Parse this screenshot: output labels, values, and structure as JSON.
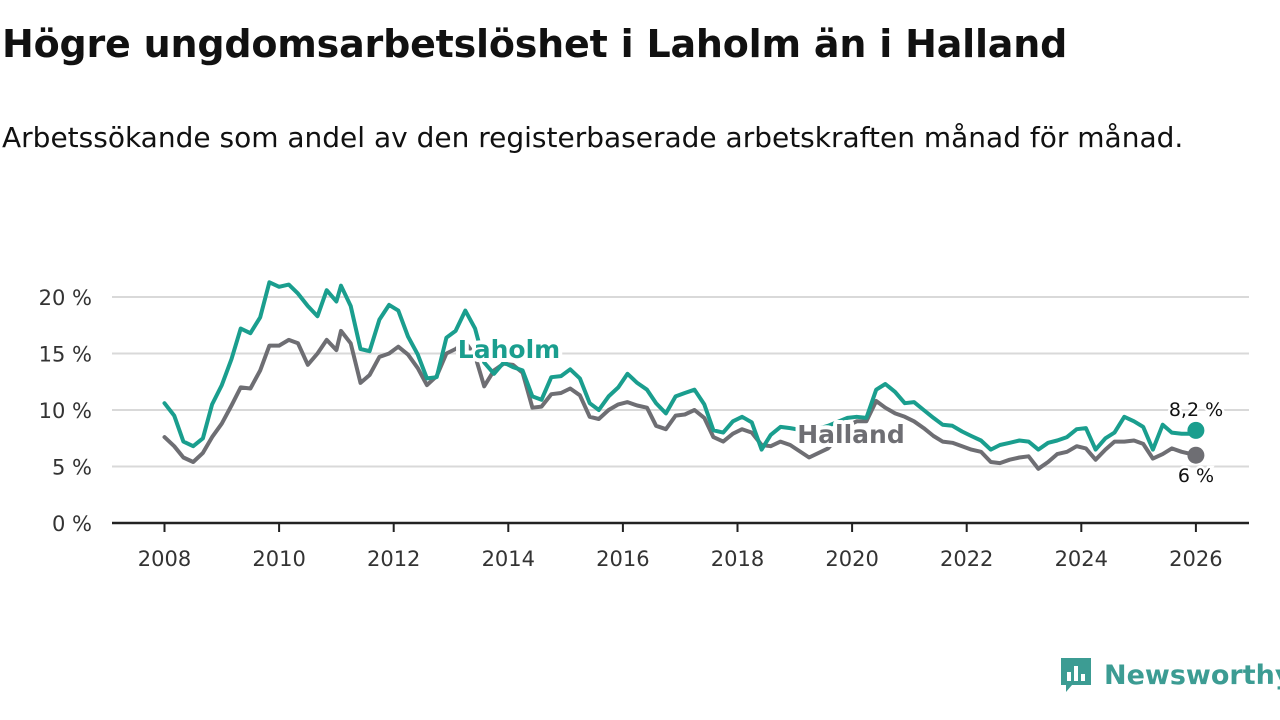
{
  "header": {
    "title": "Högre ungdomsarbetslöshet i Laholm än i Halland",
    "subtitle": "Arbetssökande som andel av den registerbaserade arbetskraften månad för månad."
  },
  "brand": {
    "name": "Newsworthy",
    "color": "#3c9c93"
  },
  "chart_data": {
    "type": "line",
    "title": "Högre ungdomsarbetslöshet i Laholm än i Halland",
    "subtitle": "Arbetssökande som andel av den registerbaserade arbetskraften månad för månad.",
    "xlabel": "",
    "ylabel": "",
    "xlim": [
      2007.5,
      2026.5
    ],
    "ylim": [
      0,
      20
    ],
    "x_ticks": [
      2008,
      2010,
      2012,
      2014,
      2016,
      2018,
      2020,
      2022,
      2024,
      2026
    ],
    "x_tick_labels": [
      "2008",
      "2010",
      "2012",
      "2014",
      "2016",
      "2018",
      "2020",
      "2022",
      "2024",
      "2026"
    ],
    "y_ticks": [
      0,
      5,
      10,
      15,
      20
    ],
    "y_tick_labels": [
      "0 %",
      "5 %",
      "10 %",
      "15 %",
      "20 %"
    ],
    "grid": true,
    "series": [
      {
        "name": "Laholm",
        "color": "#1a9e8e",
        "end_label": "8,2 %",
        "points": [
          [
            2008.0,
            10.6
          ],
          [
            2008.17,
            9.5
          ],
          [
            2008.33,
            7.2
          ],
          [
            2008.5,
            6.8
          ],
          [
            2008.67,
            7.5
          ],
          [
            2008.83,
            10.5
          ],
          [
            2009.0,
            12.2
          ],
          [
            2009.17,
            14.5
          ],
          [
            2009.33,
            17.2
          ],
          [
            2009.5,
            16.8
          ],
          [
            2009.67,
            18.2
          ],
          [
            2009.83,
            21.3
          ],
          [
            2010.0,
            20.9
          ],
          [
            2010.17,
            21.1
          ],
          [
            2010.33,
            20.3
          ],
          [
            2010.5,
            19.2
          ],
          [
            2010.67,
            18.3
          ],
          [
            2010.83,
            20.6
          ],
          [
            2011.0,
            19.6
          ],
          [
            2011.08,
            21.0
          ],
          [
            2011.25,
            19.2
          ],
          [
            2011.42,
            15.4
          ],
          [
            2011.58,
            15.2
          ],
          [
            2011.75,
            18.0
          ],
          [
            2011.92,
            19.3
          ],
          [
            2012.08,
            18.8
          ],
          [
            2012.25,
            16.5
          ],
          [
            2012.42,
            14.9
          ],
          [
            2012.58,
            12.8
          ],
          [
            2012.75,
            12.9
          ],
          [
            2012.92,
            16.4
          ],
          [
            2013.08,
            17.0
          ],
          [
            2013.25,
            18.8
          ],
          [
            2013.42,
            17.2
          ],
          [
            2013.58,
            14.2
          ],
          [
            2013.75,
            13.2
          ],
          [
            2013.92,
            14.2
          ],
          [
            2014.08,
            13.8
          ],
          [
            2014.25,
            13.5
          ],
          [
            2014.42,
            11.2
          ],
          [
            2014.58,
            10.9
          ],
          [
            2014.75,
            12.9
          ],
          [
            2014.92,
            13.0
          ],
          [
            2015.08,
            13.6
          ],
          [
            2015.25,
            12.8
          ],
          [
            2015.42,
            10.6
          ],
          [
            2015.58,
            10.0
          ],
          [
            2015.75,
            11.2
          ],
          [
            2015.92,
            12.0
          ],
          [
            2016.08,
            13.2
          ],
          [
            2016.25,
            12.4
          ],
          [
            2016.42,
            11.8
          ],
          [
            2016.58,
            10.6
          ],
          [
            2016.75,
            9.7
          ],
          [
            2016.92,
            11.2
          ],
          [
            2017.08,
            11.5
          ],
          [
            2017.25,
            11.8
          ],
          [
            2017.42,
            10.5
          ],
          [
            2017.58,
            8.2
          ],
          [
            2017.75,
            8.0
          ],
          [
            2017.92,
            9.0
          ],
          [
            2018.08,
            9.4
          ],
          [
            2018.25,
            8.9
          ],
          [
            2018.42,
            6.5
          ],
          [
            2018.58,
            7.8
          ],
          [
            2018.75,
            8.5
          ],
          [
            2018.92,
            8.4
          ],
          [
            2019.25,
            8.1
          ],
          [
            2019.58,
            8.6
          ],
          [
            2019.92,
            9.3
          ],
          [
            2020.08,
            9.4
          ],
          [
            2020.25,
            9.3
          ],
          [
            2020.42,
            11.8
          ],
          [
            2020.58,
            12.3
          ],
          [
            2020.75,
            11.6
          ],
          [
            2020.92,
            10.6
          ],
          [
            2021.08,
            10.7
          ],
          [
            2021.25,
            10.0
          ],
          [
            2021.42,
            9.3
          ],
          [
            2021.58,
            8.7
          ],
          [
            2021.75,
            8.6
          ],
          [
            2021.92,
            8.1
          ],
          [
            2022.08,
            7.7
          ],
          [
            2022.25,
            7.3
          ],
          [
            2022.42,
            6.5
          ],
          [
            2022.58,
            6.9
          ],
          [
            2022.75,
            7.1
          ],
          [
            2022.92,
            7.3
          ],
          [
            2023.08,
            7.2
          ],
          [
            2023.25,
            6.5
          ],
          [
            2023.42,
            7.1
          ],
          [
            2023.58,
            7.3
          ],
          [
            2023.75,
            7.6
          ],
          [
            2023.92,
            8.3
          ],
          [
            2024.08,
            8.4
          ],
          [
            2024.25,
            6.5
          ],
          [
            2024.42,
            7.5
          ],
          [
            2024.58,
            8.0
          ],
          [
            2024.75,
            9.4
          ],
          [
            2024.92,
            9.0
          ],
          [
            2025.08,
            8.5
          ],
          [
            2025.25,
            6.5
          ],
          [
            2025.42,
            8.7
          ],
          [
            2025.58,
            8.0
          ],
          [
            2025.75,
            7.9
          ],
          [
            2025.92,
            7.9
          ],
          [
            2026.0,
            8.2
          ]
        ]
      },
      {
        "name": "Halland",
        "color": "#6e6e73",
        "end_label": "6 %",
        "points": [
          [
            2008.0,
            7.6
          ],
          [
            2008.17,
            6.8
          ],
          [
            2008.33,
            5.8
          ],
          [
            2008.5,
            5.4
          ],
          [
            2008.67,
            6.2
          ],
          [
            2008.83,
            7.6
          ],
          [
            2009.0,
            8.8
          ],
          [
            2009.17,
            10.4
          ],
          [
            2009.33,
            12.0
          ],
          [
            2009.5,
            11.9
          ],
          [
            2009.67,
            13.5
          ],
          [
            2009.83,
            15.7
          ],
          [
            2010.0,
            15.7
          ],
          [
            2010.17,
            16.2
          ],
          [
            2010.33,
            15.9
          ],
          [
            2010.5,
            14.0
          ],
          [
            2010.67,
            15.0
          ],
          [
            2010.83,
            16.2
          ],
          [
            2011.0,
            15.3
          ],
          [
            2011.08,
            17.0
          ],
          [
            2011.25,
            15.9
          ],
          [
            2011.42,
            12.4
          ],
          [
            2011.58,
            13.1
          ],
          [
            2011.75,
            14.7
          ],
          [
            2011.92,
            15.0
          ],
          [
            2012.08,
            15.6
          ],
          [
            2012.25,
            14.9
          ],
          [
            2012.42,
            13.7
          ],
          [
            2012.58,
            12.2
          ],
          [
            2012.75,
            13.0
          ],
          [
            2012.92,
            15.0
          ],
          [
            2013.08,
            15.4
          ],
          [
            2013.25,
            16.0
          ],
          [
            2013.42,
            14.8
          ],
          [
            2013.58,
            12.1
          ],
          [
            2013.75,
            13.5
          ],
          [
            2013.92,
            14.1
          ],
          [
            2014.08,
            14.0
          ],
          [
            2014.25,
            13.3
          ],
          [
            2014.42,
            10.2
          ],
          [
            2014.58,
            10.3
          ],
          [
            2014.75,
            11.4
          ],
          [
            2014.92,
            11.5
          ],
          [
            2015.08,
            11.9
          ],
          [
            2015.25,
            11.3
          ],
          [
            2015.42,
            9.4
          ],
          [
            2015.58,
            9.2
          ],
          [
            2015.75,
            10.0
          ],
          [
            2015.92,
            10.5
          ],
          [
            2016.08,
            10.7
          ],
          [
            2016.25,
            10.4
          ],
          [
            2016.42,
            10.2
          ],
          [
            2016.58,
            8.6
          ],
          [
            2016.75,
            8.3
          ],
          [
            2016.92,
            9.5
          ],
          [
            2017.08,
            9.6
          ],
          [
            2017.25,
            10.0
          ],
          [
            2017.42,
            9.3
          ],
          [
            2017.58,
            7.6
          ],
          [
            2017.75,
            7.2
          ],
          [
            2017.92,
            7.9
          ],
          [
            2018.08,
            8.3
          ],
          [
            2018.25,
            8.0
          ],
          [
            2018.42,
            6.9
          ],
          [
            2018.58,
            6.8
          ],
          [
            2018.75,
            7.2
          ],
          [
            2018.92,
            6.9
          ],
          [
            2019.25,
            5.8
          ],
          [
            2019.58,
            6.6
          ],
          [
            2019.92,
            8.6
          ],
          [
            2020.08,
            9.0
          ],
          [
            2020.25,
            9.0
          ],
          [
            2020.42,
            10.8
          ],
          [
            2020.58,
            10.2
          ],
          [
            2020.75,
            9.7
          ],
          [
            2020.92,
            9.4
          ],
          [
            2021.08,
            9.0
          ],
          [
            2021.25,
            8.4
          ],
          [
            2021.42,
            7.7
          ],
          [
            2021.58,
            7.2
          ],
          [
            2021.75,
            7.1
          ],
          [
            2021.92,
            6.8
          ],
          [
            2022.08,
            6.5
          ],
          [
            2022.25,
            6.3
          ],
          [
            2022.42,
            5.4
          ],
          [
            2022.58,
            5.3
          ],
          [
            2022.75,
            5.6
          ],
          [
            2022.92,
            5.8
          ],
          [
            2023.08,
            5.9
          ],
          [
            2023.25,
            4.8
          ],
          [
            2023.42,
            5.4
          ],
          [
            2023.58,
            6.1
          ],
          [
            2023.75,
            6.3
          ],
          [
            2023.92,
            6.8
          ],
          [
            2024.08,
            6.6
          ],
          [
            2024.25,
            5.6
          ],
          [
            2024.42,
            6.5
          ],
          [
            2024.58,
            7.2
          ],
          [
            2024.75,
            7.2
          ],
          [
            2024.92,
            7.3
          ],
          [
            2025.08,
            7.0
          ],
          [
            2025.25,
            5.7
          ],
          [
            2025.42,
            6.1
          ],
          [
            2025.58,
            6.6
          ],
          [
            2025.75,
            6.3
          ],
          [
            2025.92,
            6.1
          ],
          [
            2026.0,
            6.0
          ]
        ]
      }
    ],
    "annotations": [
      {
        "text": "Laholm",
        "series": "Laholm"
      },
      {
        "text": "Halland",
        "series": "Halland"
      }
    ]
  }
}
